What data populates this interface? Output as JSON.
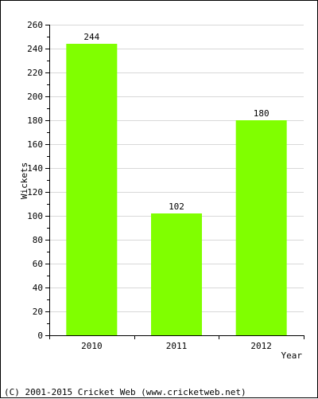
{
  "chart_data": {
    "type": "bar",
    "categories": [
      "2010",
      "2011",
      "2012"
    ],
    "values": [
      244,
      102,
      180
    ],
    "data_labels": [
      "244",
      "102",
      "180"
    ],
    "xlabel": "Year",
    "ylabel": "Wickets",
    "ylim": [
      0,
      260
    ],
    "yticks": [
      0,
      20,
      40,
      60,
      80,
      100,
      120,
      140,
      160,
      180,
      200,
      220,
      240,
      260
    ],
    "grid": true,
    "bar_color": "#80ff00",
    "grid_color": "#d8d8d8"
  },
  "footer": {
    "copyright": "(C) 2001-2015 Cricket Web (www.cricketweb.net)"
  }
}
